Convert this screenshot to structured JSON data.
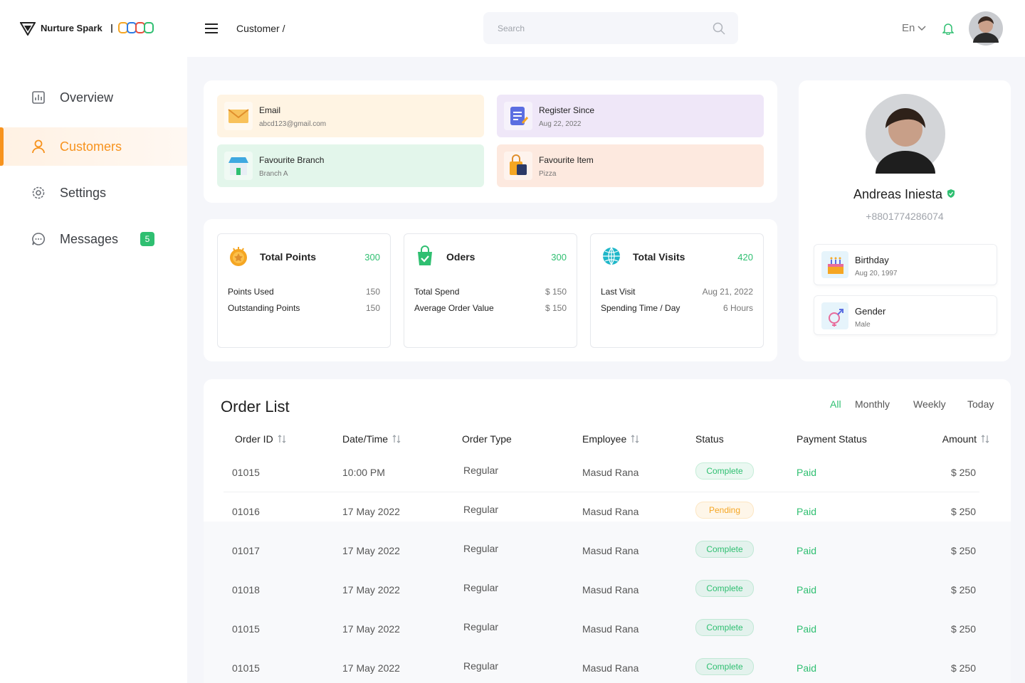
{
  "header": {
    "brand": "Nurture Spark",
    "breadcrumb": "Customer /",
    "search_placeholder": "Search",
    "language": "En"
  },
  "sidebar": {
    "active": 1,
    "items": [
      {
        "label": "Overview"
      },
      {
        "label": "Customers"
      },
      {
        "label": "Settings"
      },
      {
        "label": "Messages",
        "badge": "5"
      }
    ]
  },
  "info_cards": [
    {
      "title": "Email",
      "value": "abcd123@gmail.com",
      "color": "#fff4e3"
    },
    {
      "title": "Register Since",
      "value": "Aug 22, 2022",
      "color": "#efe7f8"
    },
    {
      "title": "Favourite Branch",
      "value": "Branch A",
      "color": "#e3f6eb"
    },
    {
      "title": "Favourite Item",
      "value": "Pizza",
      "color": "#fde9df"
    }
  ],
  "stat_cards": [
    {
      "title": "Total Points",
      "total": "300",
      "rows": [
        {
          "label": "Points Used",
          "value": "150"
        },
        {
          "label": "Outstanding Points",
          "value": "150"
        }
      ]
    },
    {
      "title": "Oders",
      "total": "300",
      "rows": [
        {
          "label": "Total Spend",
          "value": "$ 150"
        },
        {
          "label": "Average Order Value",
          "value": "$ 150"
        }
      ]
    },
    {
      "title": "Total Visits",
      "total": "420",
      "rows": [
        {
          "label": "Last Visit",
          "value": "Aug 21, 2022"
        },
        {
          "label": "Spending Time / Day",
          "value": "6 Hours"
        }
      ]
    }
  ],
  "profile": {
    "name": "Andreas Iniesta",
    "phone": "+8801774286074",
    "details": [
      {
        "title": "Birthday",
        "value": "Aug 20, 1997"
      },
      {
        "title": "Gender",
        "value": "Male"
      }
    ]
  },
  "orders": {
    "title": "Order List",
    "active_filter": 0,
    "filters": [
      "All",
      "Monthly",
      "Weekly",
      "Today"
    ],
    "columns": [
      {
        "label": "Order ID",
        "sortable": true
      },
      {
        "label": "Date/Time",
        "sortable": true
      },
      {
        "label": "Order Type",
        "sortable": false
      },
      {
        "label": "Employee",
        "sortable": true
      },
      {
        "label": "Status",
        "sortable": false
      },
      {
        "label": "Payment Status",
        "sortable": false
      },
      {
        "label": "Amount",
        "sortable": true
      }
    ],
    "rows": [
      {
        "id": "01015",
        "date": "10:00 PM",
        "type": "Regular",
        "employee": "Masud Rana",
        "status": "Complete",
        "status_color": "#2fbf71",
        "payment": "Paid",
        "amount": "$ 250"
      },
      {
        "id": "01016",
        "date": "17 May 2022",
        "type": "Regular",
        "employee": "Masud Rana",
        "status": "Pending",
        "status_color": "#f5a623",
        "payment": "Paid",
        "amount": "$ 250"
      },
      {
        "id": "01017",
        "date": "17 May 2022",
        "type": "Regular",
        "employee": "Masud Rana",
        "status": "Complete",
        "status_color": "#2fbf71",
        "payment": "Paid",
        "amount": "$ 250"
      },
      {
        "id": "01018",
        "date": "17 May 2022",
        "type": "Regular",
        "employee": "Masud Rana",
        "status": "Complete",
        "status_color": "#2fbf71",
        "payment": "Paid",
        "amount": "$ 250"
      },
      {
        "id": "01015",
        "date": "17 May 2022",
        "type": "Regular",
        "employee": "Masud Rana",
        "status": "Complete",
        "status_color": "#2fbf71",
        "payment": "Paid",
        "amount": "$ 250"
      },
      {
        "id": "01015",
        "date": "17 May 2022",
        "type": "Regular",
        "employee": "Masud Rana",
        "status": "Complete",
        "status_color": "#2fbf71",
        "payment": "Paid",
        "amount": "$ 250"
      }
    ]
  }
}
